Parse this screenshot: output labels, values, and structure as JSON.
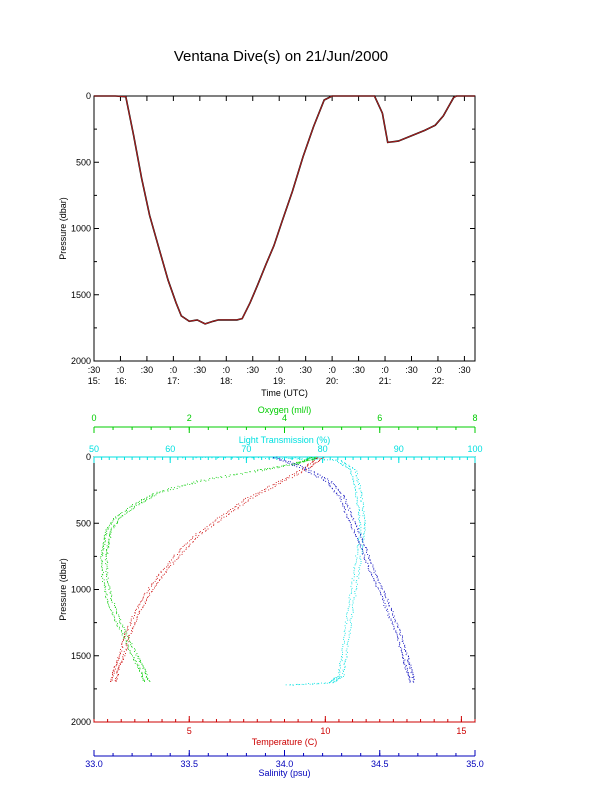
{
  "title": "Ventana Dive(s) on 21/Jun/2000",
  "chart_data": [
    {
      "type": "line",
      "xlabel": "Time (UTC)",
      "ylabel": "Pressure (dbar)",
      "ylim": [
        2000,
        0
      ],
      "yticks": [
        "0",
        "500",
        "1000",
        "1500",
        "2000"
      ],
      "xticks": [
        {
          "min": ":30",
          "hour": "15:"
        },
        {
          "min": ":0",
          "hour": "16:"
        },
        {
          "min": ":30",
          "hour": ""
        },
        {
          "min": ":0",
          "hour": "17:"
        },
        {
          "min": ":30",
          "hour": ""
        },
        {
          "min": ":0",
          "hour": "18:"
        },
        {
          "min": ":30",
          "hour": ""
        },
        {
          "min": ":0",
          "hour": "19:"
        },
        {
          "min": ":30",
          "hour": ""
        },
        {
          "min": ":0",
          "hour": "20:"
        },
        {
          "min": ":30",
          "hour": ""
        },
        {
          "min": ":0",
          "hour": "21:"
        },
        {
          "min": ":30",
          "hour": ""
        },
        {
          "min": ":0",
          "hour": "22:"
        },
        {
          "min": ":30",
          "hour": ""
        }
      ],
      "xrange_hours": [
        15.5,
        22.7
      ],
      "series": [
        {
          "color": "#cc2222",
          "points": [
            [
              15.5,
              0
            ],
            [
              15.9,
              0
            ],
            [
              16.1,
              5
            ],
            [
              16.25,
              300
            ],
            [
              16.4,
              620
            ],
            [
              16.55,
              900
            ],
            [
              16.75,
              1180
            ],
            [
              16.9,
              1390
            ],
            [
              17.05,
              1560
            ],
            [
              17.15,
              1660
            ],
            [
              17.3,
              1700
            ],
            [
              17.45,
              1690
            ],
            [
              17.6,
              1720
            ],
            [
              17.75,
              1700
            ],
            [
              17.85,
              1690
            ],
            [
              18.0,
              1690
            ],
            [
              18.2,
              1690
            ],
            [
              18.3,
              1680
            ],
            [
              18.45,
              1560
            ],
            [
              18.6,
              1420
            ],
            [
              18.75,
              1270
            ],
            [
              18.9,
              1130
            ],
            [
              19.05,
              950
            ],
            [
              19.25,
              720
            ],
            [
              19.45,
              460
            ],
            [
              19.65,
              230
            ],
            [
              19.85,
              30
            ],
            [
              20.0,
              0
            ],
            [
              20.4,
              0
            ],
            [
              20.8,
              0
            ],
            [
              20.95,
              130
            ],
            [
              21.05,
              350
            ],
            [
              21.25,
              340
            ],
            [
              21.5,
              300
            ],
            [
              21.75,
              260
            ],
            [
              21.95,
              220
            ],
            [
              22.1,
              150
            ],
            [
              22.2,
              80
            ],
            [
              22.3,
              10
            ],
            [
              22.35,
              0
            ],
            [
              22.7,
              0
            ]
          ]
        }
      ]
    },
    {
      "type": "scatter",
      "ylabel": "Pressure (dbar)",
      "ylim": [
        2000,
        0
      ],
      "yticks": [
        "0",
        "500",
        "1000",
        "1500",
        "2000"
      ],
      "axes": {
        "oxygen": {
          "label": "Oxygen (ml/l)",
          "range": [
            0,
            8
          ],
          "ticks": [
            "0",
            "2",
            "4",
            "6",
            "8"
          ],
          "color": "#00cc00"
        },
        "light": {
          "label": "Light Transmission (%)",
          "range": [
            50,
            100
          ],
          "ticks": [
            "50",
            "60",
            "70",
            "80",
            "90",
            "100"
          ],
          "color": "#00e0e0"
        },
        "temperature": {
          "label": "Temperature (C)",
          "range": [
            1.5,
            15.5
          ],
          "ticks": [
            "5",
            "10",
            "15"
          ],
          "color": "#cc0000"
        },
        "salinity": {
          "label": "Salinity (psu)",
          "range": [
            33.0,
            35.0
          ],
          "ticks": [
            "33.0",
            "33.5",
            "34.0",
            "34.5",
            "35.0"
          ],
          "color": "#0000bb"
        }
      },
      "series": [
        {
          "variable": "oxygen",
          "color": "#00cc00",
          "points": [
            [
              4.6,
              0
            ],
            [
              4.5,
              20
            ],
            [
              4.2,
              50
            ],
            [
              3.4,
              100
            ],
            [
              2.2,
              180
            ],
            [
              1.3,
              270
            ],
            [
              0.9,
              350
            ],
            [
              0.5,
              450
            ],
            [
              0.3,
              550
            ],
            [
              0.25,
              650
            ],
            [
              0.2,
              750
            ],
            [
              0.22,
              900
            ],
            [
              0.3,
              1050
            ],
            [
              0.45,
              1200
            ],
            [
              0.65,
              1350
            ],
            [
              0.85,
              1500
            ],
            [
              1.0,
              1600
            ],
            [
              1.1,
              1700
            ]
          ]
        },
        {
          "variable": "light",
          "color": "#00e0e0",
          "points": [
            [
              62,
              0
            ],
            [
              75,
              5
            ],
            [
              82,
              20
            ],
            [
              84,
              100
            ],
            [
              84.6,
              250
            ],
            [
              85,
              400
            ],
            [
              85.2,
              550
            ],
            [
              84.8,
              700
            ],
            [
              84.3,
              900
            ],
            [
              83.7,
              1100
            ],
            [
              83.2,
              1300
            ],
            [
              82.8,
              1500
            ],
            [
              82.3,
              1650
            ],
            [
              81,
              1700
            ],
            [
              75,
              1720
            ]
          ]
        },
        {
          "variable": "temperature",
          "color": "#cc0000",
          "points": [
            [
              9.8,
              0
            ],
            [
              9.3,
              80
            ],
            [
              8.2,
              200
            ],
            [
              7.1,
              320
            ],
            [
              6.2,
              450
            ],
            [
              5.2,
              600
            ],
            [
              4.5,
              750
            ],
            [
              3.9,
              900
            ],
            [
              3.4,
              1050
            ],
            [
              3.0,
              1200
            ],
            [
              2.7,
              1350
            ],
            [
              2.5,
              1500
            ],
            [
              2.3,
              1600
            ],
            [
              2.2,
              1700
            ]
          ]
        },
        {
          "variable": "salinity",
          "color": "#0000bb",
          "points": [
            [
              33.95,
              0
            ],
            [
              34.1,
              80
            ],
            [
              34.23,
              180
            ],
            [
              34.3,
              300
            ],
            [
              34.34,
              450
            ],
            [
              34.39,
              600
            ],
            [
              34.43,
              750
            ],
            [
              34.47,
              900
            ],
            [
              34.52,
              1050
            ],
            [
              34.56,
              1200
            ],
            [
              34.6,
              1350
            ],
            [
              34.63,
              1500
            ],
            [
              34.65,
              1600
            ],
            [
              34.67,
              1700
            ]
          ]
        }
      ]
    }
  ]
}
